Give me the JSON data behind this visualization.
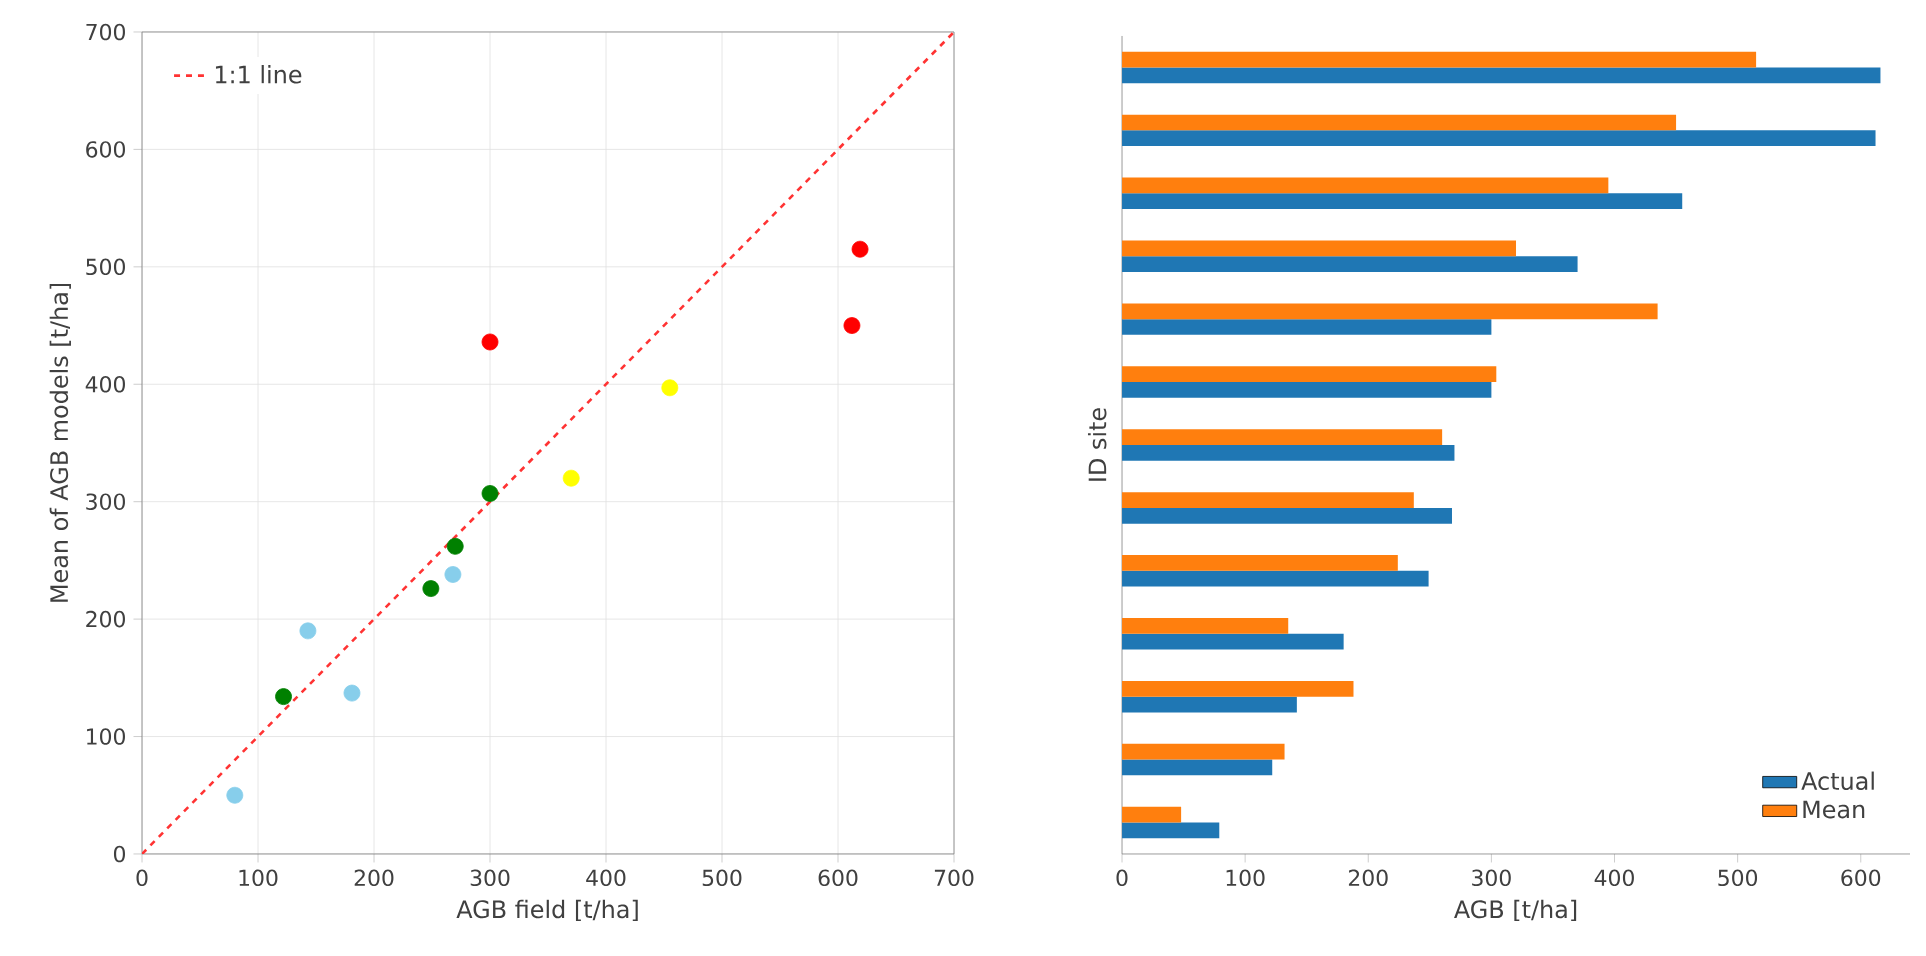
{
  "chart_data": [
    {
      "type": "scatter",
      "xlabel": "AGB field [t/ha]",
      "ylabel": "Mean of AGB models [t/ha]",
      "xlim": [
        0,
        700
      ],
      "ylim": [
        0,
        700
      ],
      "xticks": [
        0,
        100,
        200,
        300,
        400,
        500,
        600,
        700
      ],
      "yticks": [
        0,
        100,
        200,
        300,
        400,
        500,
        600,
        700
      ],
      "grid": true,
      "legend": "top left",
      "marker": "circle",
      "series": [
        {
          "type": "line",
          "name": "1:1 line",
          "color": "#ff3333",
          "line_style": "dashed",
          "marker": "none",
          "x": [
            0,
            700
          ],
          "values": [
            0,
            700
          ]
        },
        {
          "color": "#87ceeb",
          "x": [
            80,
            143,
            181,
            268
          ],
          "values": [
            50,
            190,
            137,
            238
          ]
        },
        {
          "color": "#008000",
          "x": [
            122,
            249,
            270,
            300
          ],
          "values": [
            134,
            226,
            262,
            307
          ]
        },
        {
          "color": "#ffff00",
          "x": [
            370,
            455
          ],
          "values": [
            320,
            397
          ]
        },
        {
          "color": "#ff0000",
          "x": [
            300,
            612,
            619
          ],
          "values": [
            436,
            450,
            515
          ]
        }
      ]
    },
    {
      "type": "bar",
      "orientation": "horizontal",
      "xlabel": "AGB [t/ha]",
      "ylabel": "ID site",
      "xlim": [
        0,
        640
      ],
      "xticks": [
        0,
        100,
        200,
        300,
        400,
        500,
        600
      ],
      "legend": "bottom right",
      "categories": [
        null,
        null,
        null,
        null,
        null,
        null,
        null,
        null,
        null,
        null,
        null,
        null,
        null
      ],
      "series": [
        {
          "name": "Actual",
          "color": "#1f77b4",
          "values": [
            616,
            612,
            455,
            370,
            300,
            300,
            270,
            268,
            249,
            180,
            142,
            122,
            79
          ]
        },
        {
          "name": "Mean",
          "color": "#ff7f0e",
          "values": [
            515,
            450,
            395,
            320,
            435,
            304,
            260,
            237,
            224,
            135,
            188,
            132,
            48
          ]
        }
      ]
    }
  ]
}
